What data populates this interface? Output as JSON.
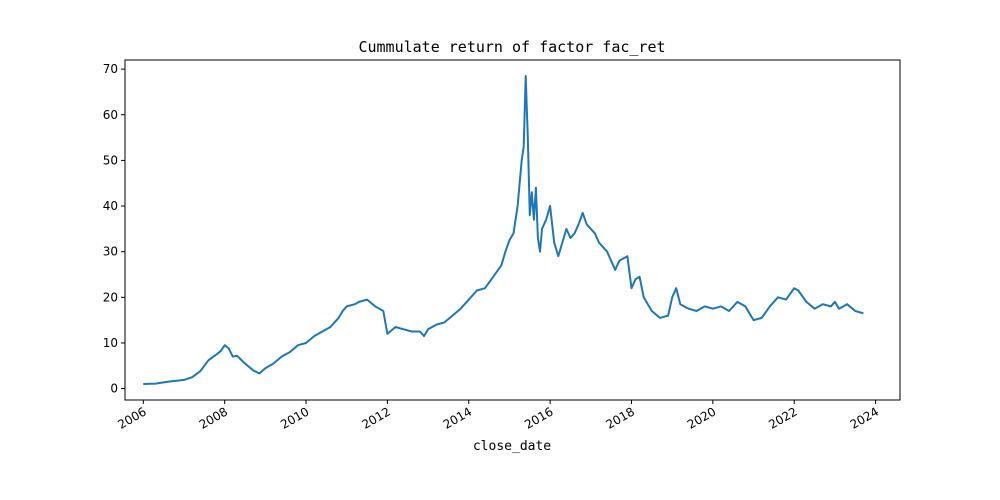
{
  "chart_data": {
    "type": "line",
    "title": "Cummulate return of factor fac_ret",
    "xlabel": "close_date",
    "ylabel": "",
    "xlim": [
      2005.55,
      2024.6
    ],
    "ylim": [
      -2.5,
      72.0
    ],
    "x_ticks": [
      "2006",
      "2008",
      "2010",
      "2012",
      "2014",
      "2016",
      "2018",
      "2020",
      "2022",
      "2024"
    ],
    "y_ticks": [
      0,
      10,
      20,
      30,
      40,
      50,
      60,
      70
    ],
    "grid": false,
    "legend": "none",
    "line_color": "#1f77b4",
    "series": [
      {
        "x": [
          2006.0,
          2006.3,
          2006.6,
          2006.9,
          2007.0,
          2007.2,
          2007.4,
          2007.5,
          2007.6,
          2007.8,
          2007.9,
          2008.0,
          2008.1,
          2008.2,
          2008.3,
          2008.5,
          2008.7,
          2008.85,
          2009.0,
          2009.2,
          2009.4,
          2009.6,
          2009.8,
          2010.0,
          2010.2,
          2010.4,
          2010.6,
          2010.8,
          2010.9,
          2011.0,
          2011.2,
          2011.3,
          2011.5,
          2011.7,
          2011.9,
          2012.0,
          2012.2,
          2012.4,
          2012.6,
          2012.8,
          2012.9,
          2013.0,
          2013.2,
          2013.4,
          2013.6,
          2013.8,
          2014.0,
          2014.2,
          2014.4,
          2014.6,
          2014.8,
          2014.9,
          2015.0,
          2015.1,
          2015.2,
          2015.3,
          2015.35,
          2015.4,
          2015.45,
          2015.5,
          2015.55,
          2015.6,
          2015.65,
          2015.7,
          2015.75,
          2015.8,
          2015.9,
          2016.0,
          2016.1,
          2016.2,
          2016.3,
          2016.4,
          2016.5,
          2016.6,
          2016.7,
          2016.8,
          2016.9,
          2017.0,
          2017.1,
          2017.2,
          2017.4,
          2017.6,
          2017.7,
          2017.9,
          2018.0,
          2018.1,
          2018.2,
          2018.3,
          2018.5,
          2018.7,
          2018.9,
          2019.0,
          2019.1,
          2019.2,
          2019.4,
          2019.6,
          2019.8,
          2020.0,
          2020.2,
          2020.4,
          2020.6,
          2020.8,
          2021.0,
          2021.2,
          2021.4,
          2021.6,
          2021.8,
          2022.0,
          2022.1,
          2022.3,
          2022.5,
          2022.7,
          2022.9,
          2023.0,
          2023.1,
          2023.3,
          2023.5,
          2023.7
        ],
        "y": [
          1.0,
          1.1,
          1.5,
          1.8,
          1.9,
          2.5,
          3.8,
          5.0,
          6.2,
          7.5,
          8.2,
          9.5,
          8.8,
          7.0,
          7.2,
          5.5,
          4.0,
          3.3,
          4.5,
          5.5,
          7.0,
          8.0,
          9.5,
          10.0,
          11.5,
          12.5,
          13.5,
          15.5,
          17.0,
          18.0,
          18.5,
          19.0,
          19.5,
          18.0,
          17.0,
          12.0,
          13.5,
          13.0,
          12.5,
          12.5,
          11.5,
          13.0,
          14.0,
          14.5,
          16.0,
          17.5,
          19.5,
          21.5,
          22.0,
          24.5,
          27.0,
          30.0,
          32.5,
          34.0,
          40.0,
          50.0,
          53.0,
          68.5,
          55.0,
          38.0,
          43.0,
          37.0,
          44.0,
          33.0,
          30.0,
          35.0,
          37.0,
          40.0,
          32.0,
          29.0,
          32.0,
          35.0,
          33.0,
          34.0,
          36.0,
          38.5,
          36.0,
          35.0,
          34.0,
          32.0,
          30.0,
          26.0,
          28.0,
          29.0,
          22.0,
          24.0,
          24.5,
          20.0,
          17.0,
          15.5,
          16.0,
          20.0,
          22.0,
          18.5,
          17.5,
          17.0,
          18.0,
          17.5,
          18.0,
          17.0,
          19.0,
          18.0,
          15.0,
          15.5,
          18.0,
          20.0,
          19.5,
          22.0,
          21.5,
          19.0,
          17.5,
          18.5,
          18.0,
          19.0,
          17.5,
          18.5,
          17.0,
          16.5
        ]
      }
    ]
  }
}
